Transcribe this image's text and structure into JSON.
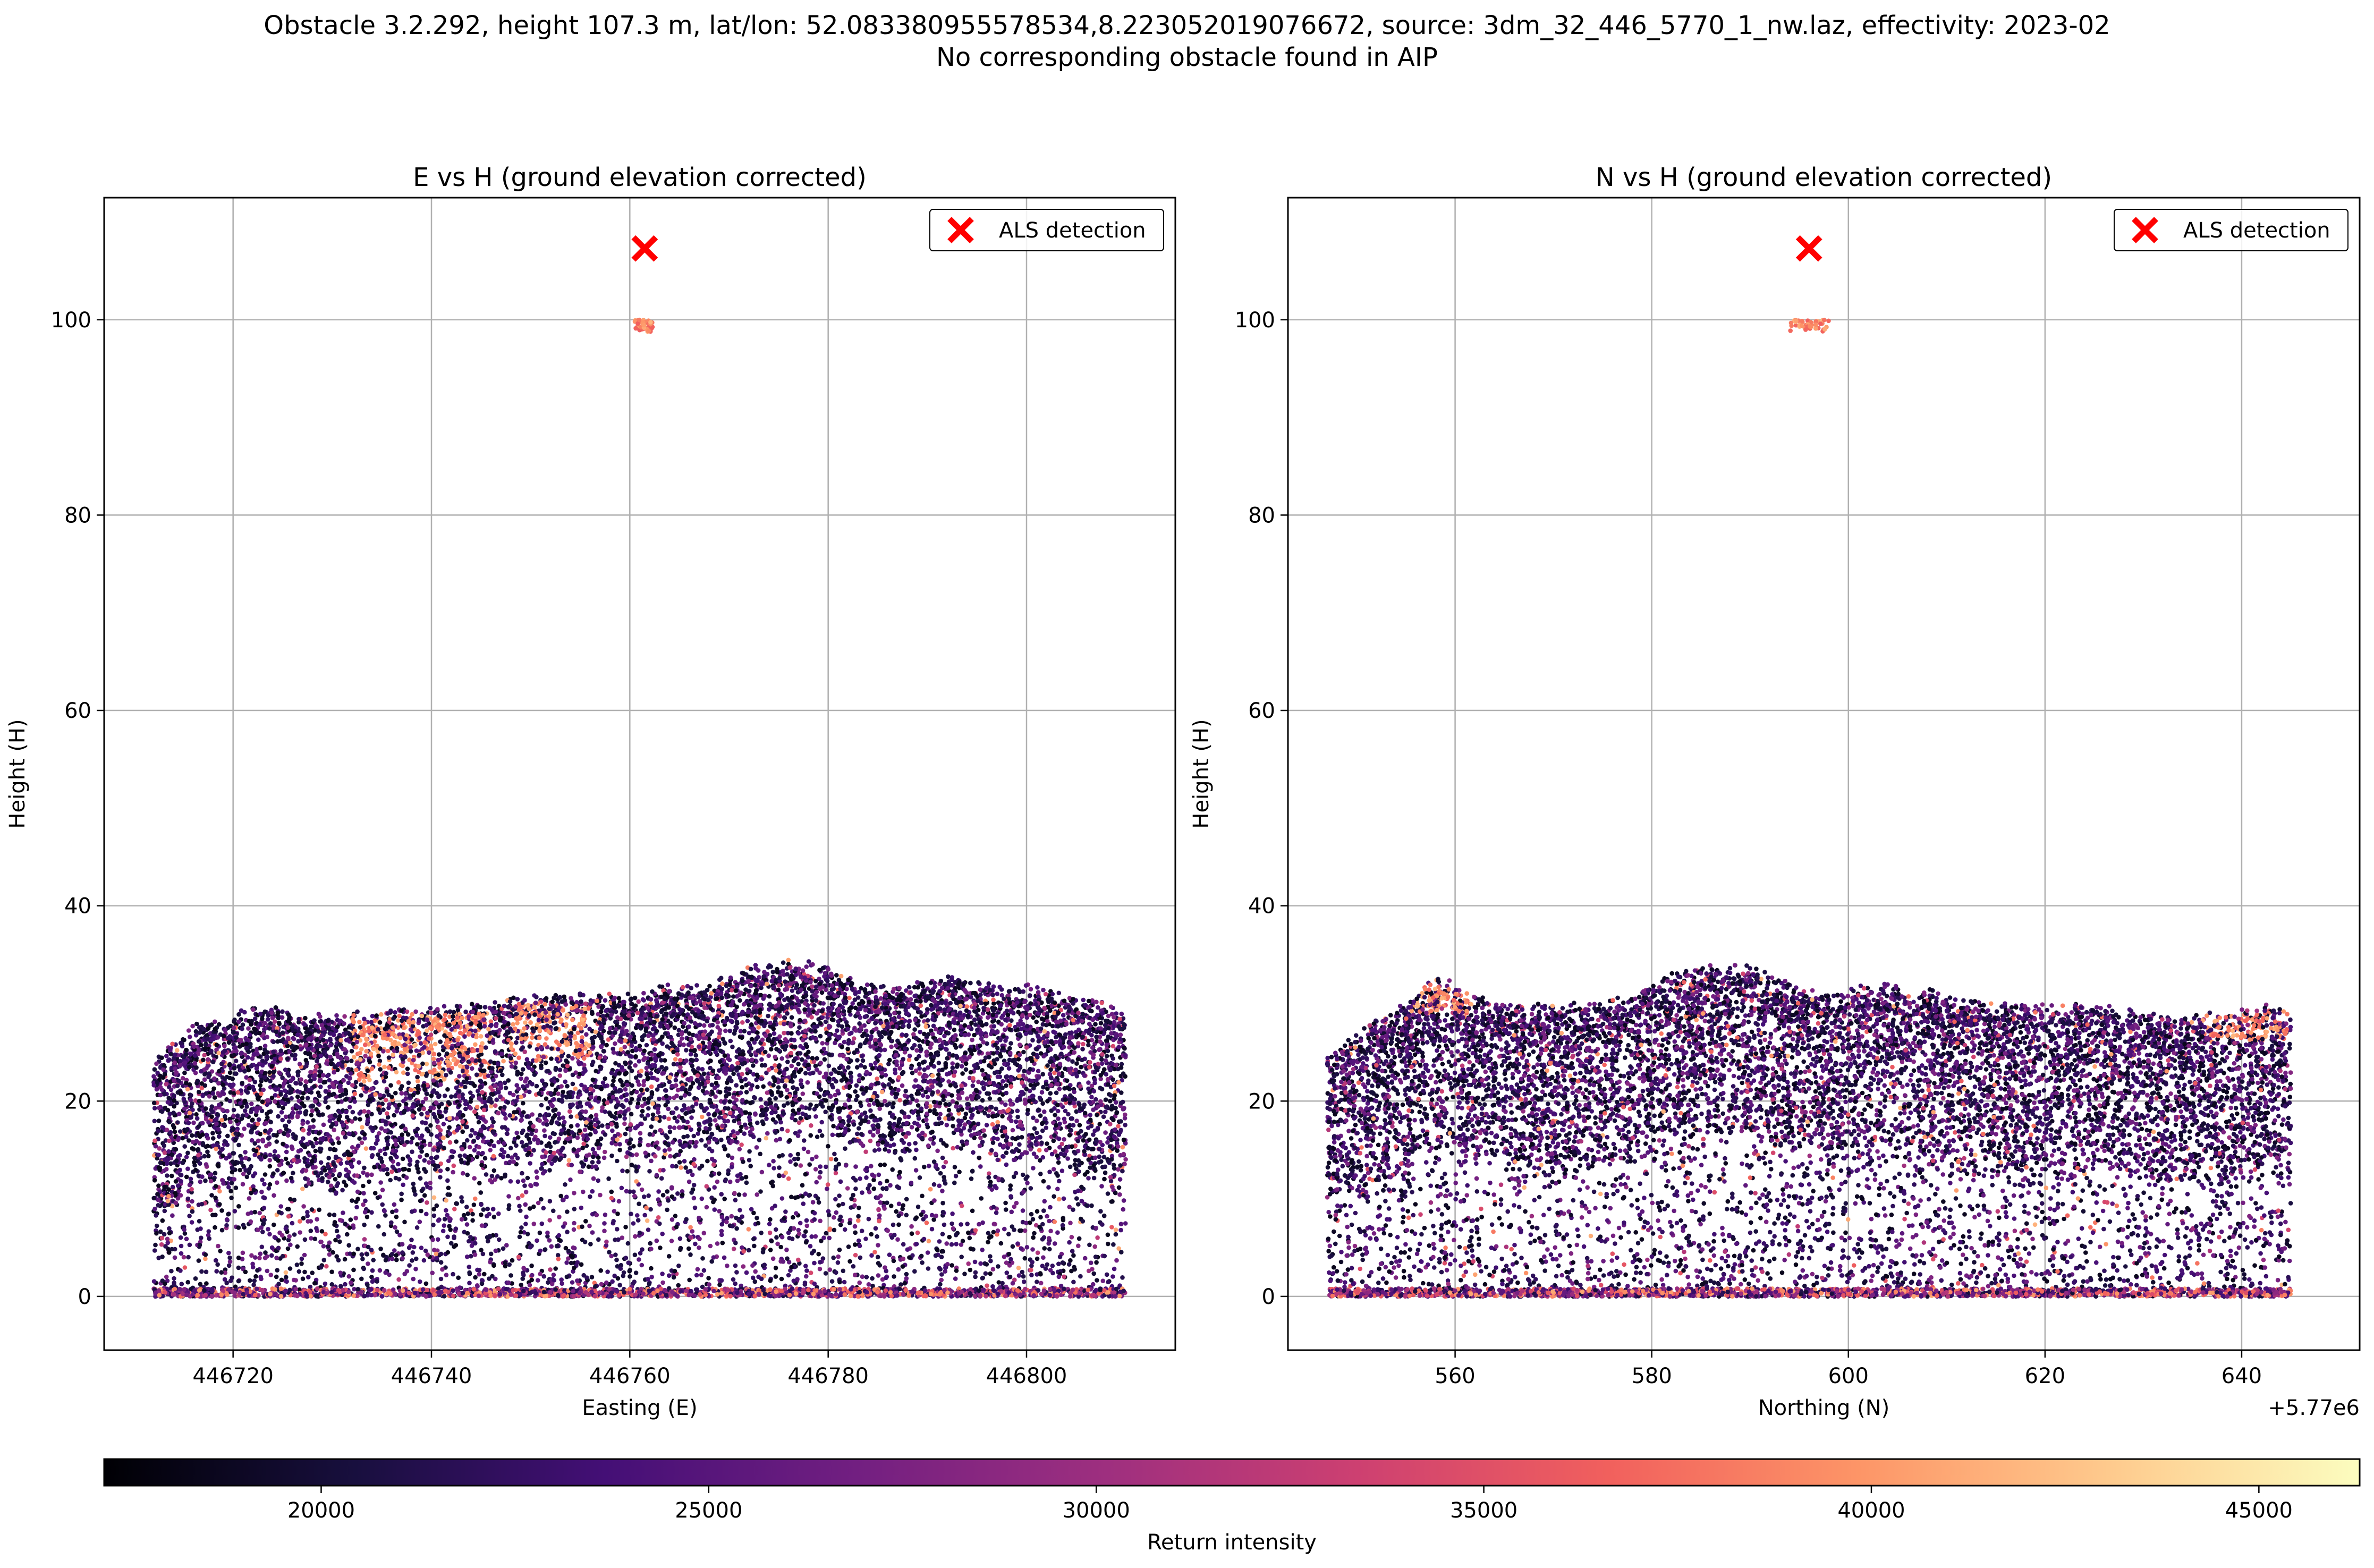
{
  "figure": {
    "suptitle_line1": "Obstacle 3.2.292, height 107.3 m, lat/lon: 52.083380955578534,8.223052019076672, source: 3dm_32_446_5770_1_nw.laz, effectivity: 2023-02",
    "suptitle_line2": "No corresponding obstacle found in AIP"
  },
  "chart_data": [
    {
      "type": "scatter",
      "title": "E vs H (ground elevation corrected)",
      "xlabel": "Easting (E)",
      "ylabel": "Height (H)",
      "xlim": [
        446707,
        446815
      ],
      "ylim": [
        -5.5,
        112.5
      ],
      "xticks": [
        446720,
        446740,
        446760,
        446780,
        446800
      ],
      "xtick_labels": [
        "446720",
        "446740",
        "446760",
        "446780",
        "446800"
      ],
      "yticks": [
        0,
        20,
        40,
        60,
        80,
        100
      ],
      "ytick_labels": [
        "0",
        "20",
        "40",
        "60",
        "80",
        "100"
      ],
      "offset_text": "",
      "grid": true,
      "legend": {
        "position": "upper-right",
        "label": "ALS detection"
      },
      "detection": {
        "x": 446761.5,
        "y": 107.3
      },
      "point_cloud": {
        "x_range": [
          446712,
          446810
        ],
        "top_profile": [
          [
            446712,
            23
          ],
          [
            446716,
            27
          ],
          [
            446720,
            28
          ],
          [
            446724,
            29
          ],
          [
            446728,
            28
          ],
          [
            446732,
            28
          ],
          [
            446736,
            28.5
          ],
          [
            446740,
            29
          ],
          [
            446744,
            29
          ],
          [
            446748,
            30
          ],
          [
            446752,
            30
          ],
          [
            446756,
            30
          ],
          [
            446760,
            30
          ],
          [
            446764,
            31
          ],
          [
            446768,
            31
          ],
          [
            446772,
            33
          ],
          [
            446776,
            33.5
          ],
          [
            446780,
            33
          ],
          [
            446784,
            31
          ],
          [
            446788,
            31
          ],
          [
            446792,
            32
          ],
          [
            446796,
            31
          ],
          [
            446800,
            31
          ],
          [
            446804,
            30
          ],
          [
            446808,
            29
          ],
          [
            446810,
            28
          ]
        ],
        "bright_patches": [
          {
            "x": [
              446732,
              446746
            ],
            "y": [
              22,
              29
            ]
          },
          {
            "x": [
              446748,
              446756
            ],
            "y": [
              24,
              30
            ]
          }
        ],
        "top_cluster": {
          "x": [
            446760.5,
            446762.5
          ],
          "y": [
            98.8,
            100
          ]
        }
      }
    },
    {
      "type": "scatter",
      "title": "N vs H (ground elevation corrected)",
      "xlabel": "Northing (N)",
      "ylabel": "Height (H)",
      "xlim": [
        5770543,
        5770652
      ],
      "ylim": [
        -5.5,
        112.5
      ],
      "xticks": [
        5770560,
        5770580,
        5770600,
        5770620,
        5770640
      ],
      "xtick_labels": [
        "560",
        "580",
        "600",
        "620",
        "640"
      ],
      "yticks": [
        0,
        20,
        40,
        60,
        80,
        100
      ],
      "ytick_labels": [
        "0",
        "20",
        "40",
        "60",
        "80",
        "100"
      ],
      "offset_text": "+5.77e6",
      "grid": true,
      "legend": {
        "position": "upper-right",
        "label": "ALS detection"
      },
      "detection": {
        "x": 5770596,
        "y": 107.3
      },
      "point_cloud": {
        "x_range": [
          5770547,
          5770645
        ],
        "top_profile": [
          [
            5770547,
            24
          ],
          [
            5770551,
            27
          ],
          [
            5770555,
            29
          ],
          [
            5770558,
            32
          ],
          [
            5770562,
            30
          ],
          [
            5770566,
            29
          ],
          [
            5770570,
            29
          ],
          [
            5770574,
            29
          ],
          [
            5770578,
            30
          ],
          [
            5770582,
            32
          ],
          [
            5770586,
            33
          ],
          [
            5770590,
            33
          ],
          [
            5770594,
            31
          ],
          [
            5770598,
            30
          ],
          [
            5770602,
            31
          ],
          [
            5770606,
            31
          ],
          [
            5770610,
            30
          ],
          [
            5770614,
            29
          ],
          [
            5770618,
            29
          ],
          [
            5770622,
            29
          ],
          [
            5770626,
            29
          ],
          [
            5770630,
            28
          ],
          [
            5770634,
            28
          ],
          [
            5770638,
            28
          ],
          [
            5770642,
            29
          ],
          [
            5770645,
            28
          ]
        ],
        "bright_patches": [
          {
            "x": [
              5770556,
              5770562
            ],
            "y": [
              29,
              32
            ]
          },
          {
            "x": [
              5770636,
              5770645
            ],
            "y": [
              26,
              29
            ]
          }
        ],
        "top_cluster": {
          "x": [
            5770594,
            5770598
          ],
          "y": [
            98.8,
            100
          ]
        }
      }
    }
  ],
  "colorbar": {
    "label": "Return intensity",
    "range": [
      17200,
      46300
    ],
    "ticks": [
      20000,
      25000,
      30000,
      35000,
      40000,
      45000
    ],
    "tick_labels": [
      "20000",
      "25000",
      "30000",
      "35000",
      "40000",
      "45000"
    ],
    "colormap": "magma",
    "colormap_stops": [
      "#000004",
      "#180f3e",
      "#440f76",
      "#721f81",
      "#9e2f7f",
      "#cd4071",
      "#f1605d",
      "#fd9567",
      "#feca8d",
      "#fcfdbf"
    ]
  },
  "colors": {
    "detection_marker": "#ff0000",
    "grid": "#b0b0b0",
    "axes": "#000000"
  }
}
